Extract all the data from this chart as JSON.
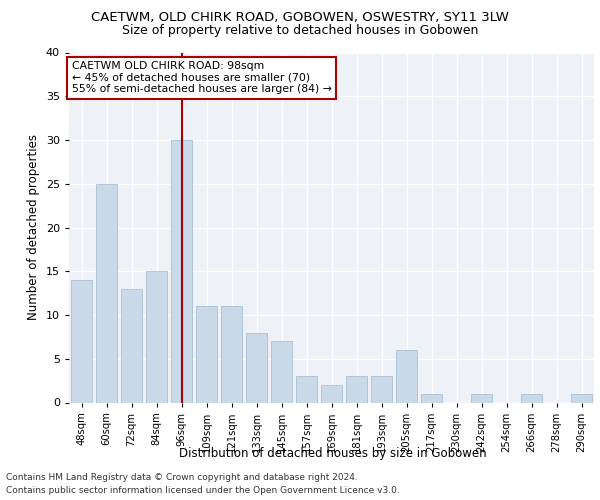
{
  "title1": "CAETWM, OLD CHIRK ROAD, GOBOWEN, OSWESTRY, SY11 3LW",
  "title2": "Size of property relative to detached houses in Gobowen",
  "xlabel": "Distribution of detached houses by size in Gobowen",
  "ylabel": "Number of detached properties",
  "categories": [
    "48sqm",
    "60sqm",
    "72sqm",
    "84sqm",
    "96sqm",
    "109sqm",
    "121sqm",
    "133sqm",
    "145sqm",
    "157sqm",
    "169sqm",
    "181sqm",
    "193sqm",
    "205sqm",
    "217sqm",
    "230sqm",
    "242sqm",
    "254sqm",
    "266sqm",
    "278sqm",
    "290sqm"
  ],
  "values": [
    14,
    25,
    13,
    15,
    30,
    11,
    11,
    8,
    7,
    3,
    2,
    3,
    3,
    6,
    1,
    0,
    1,
    0,
    1,
    0,
    1
  ],
  "bar_color": "#c9d9e8",
  "bar_edge_color": "#a8c0d4",
  "highlight_index": 4,
  "highlight_color": "#aa0000",
  "annotation_text": "CAETWM OLD CHIRK ROAD: 98sqm\n← 45% of detached houses are smaller (70)\n55% of semi-detached houses are larger (84) →",
  "annotation_box_color": "#ffffff",
  "annotation_box_edge": "#aa0000",
  "ylim": [
    0,
    40
  ],
  "yticks": [
    0,
    5,
    10,
    15,
    20,
    25,
    30,
    35,
    40
  ],
  "footer1": "Contains HM Land Registry data © Crown copyright and database right 2024.",
  "footer2": "Contains public sector information licensed under the Open Government Licence v3.0.",
  "plot_bg_color": "#eef2f7"
}
